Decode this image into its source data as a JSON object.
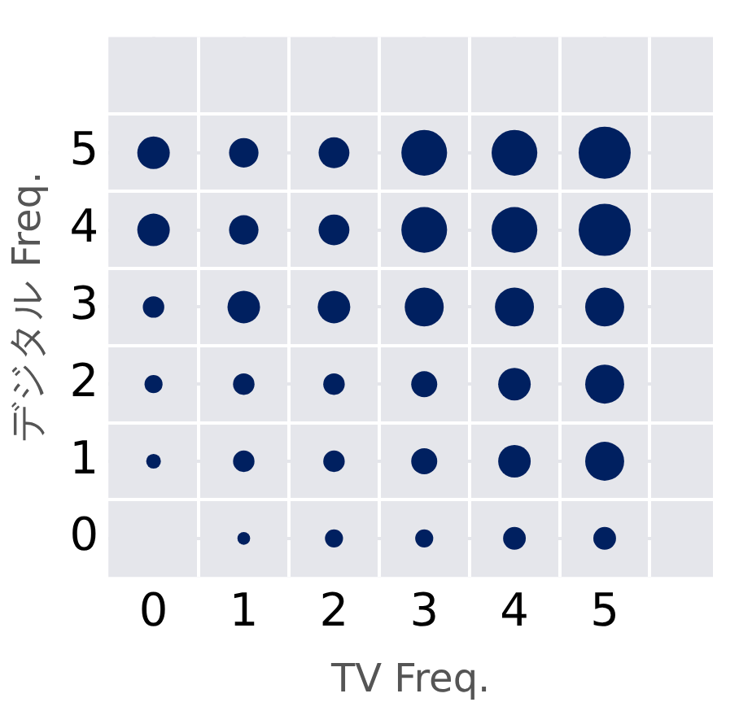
{
  "chart_data": {
    "type": "bubble",
    "xlabel": "TV Freq.",
    "ylabel": "デジタル Freq.",
    "xlim": [
      -0.5,
      6.2
    ],
    "ylim": [
      -0.5,
      6.5
    ],
    "xticks": [
      0,
      {
        "value": 0.5,
        "label": null
      },
      1,
      {
        "value": 1.5,
        "label": null
      },
      2,
      {
        "value": 2.5,
        "label": null
      },
      3,
      {
        "value": 3.5,
        "label": null
      },
      4,
      {
        "value": 4.5,
        "label": null
      },
      5,
      {
        "value": 5.5,
        "label": null
      }
    ],
    "yticks": [
      0,
      {
        "value": 0.5,
        "label": null
      },
      1,
      {
        "value": 1.5,
        "label": null
      },
      2,
      {
        "value": 2.5,
        "label": null
      },
      3,
      {
        "value": 3.5,
        "label": null
      },
      4,
      {
        "value": 4.5,
        "label": null
      },
      5,
      {
        "value": 5.5,
        "label": null
      }
    ],
    "grid": true,
    "series": [
      {
        "color": "#002060",
        "x": [
          0,
          1,
          2,
          3,
          4,
          5,
          0,
          1,
          2,
          3,
          4,
          5,
          0,
          1,
          2,
          3,
          4,
          5,
          0,
          1,
          2,
          3,
          4,
          5,
          0,
          1,
          2,
          3,
          4,
          5,
          1,
          2,
          3,
          4,
          5
        ],
        "values": [
          5,
          5,
          5,
          5,
          5,
          5,
          4,
          4,
          4,
          4,
          4,
          4,
          3,
          3,
          3,
          3,
          3,
          3,
          2,
          2,
          2,
          2,
          2,
          2,
          1,
          1,
          1,
          1,
          1,
          1,
          0,
          0,
          0,
          0,
          0
        ],
        "sizes": [
          0.39,
          0.32,
          0.35,
          0.77,
          0.77,
          1,
          0.39,
          0.32,
          0.35,
          0.77,
          0.77,
          1,
          0.17,
          0.39,
          0.39,
          0.56,
          0.56,
          0.56,
          0.12,
          0.17,
          0.17,
          0.25,
          0.39,
          0.56,
          0.08,
          0.17,
          0.17,
          0.25,
          0.39,
          0.56,
          0.06,
          0.12,
          0.12,
          0.19,
          0.19
        ]
      }
    ]
  }
}
